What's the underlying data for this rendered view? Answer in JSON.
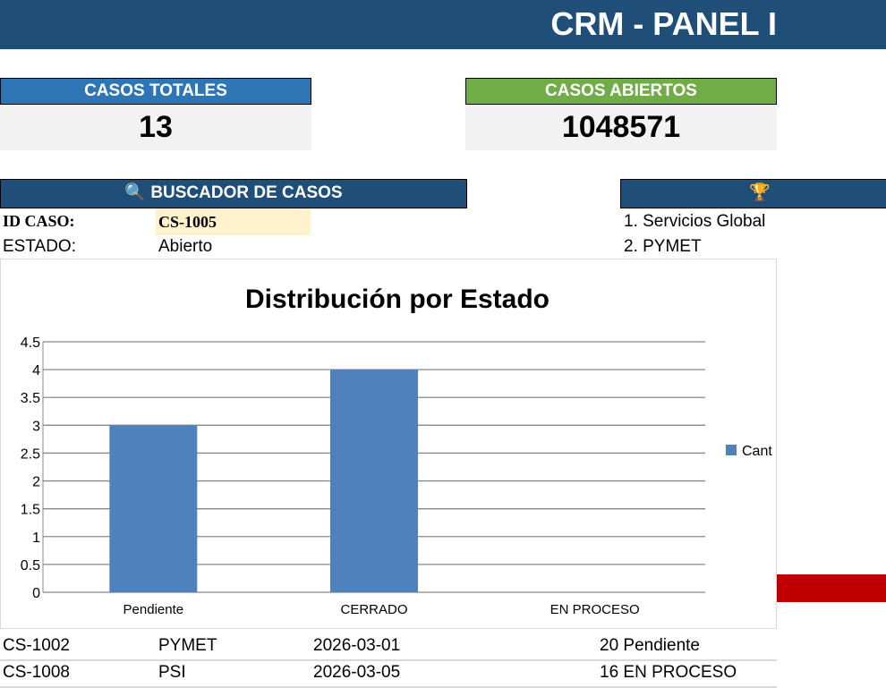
{
  "header": {
    "title": "CRM - PANEL I"
  },
  "kpis": [
    {
      "label": "CASOS TOTALES",
      "value": "13",
      "color": "#2e75b6"
    },
    {
      "label": "CASOS ABIERTOS",
      "value": "1048571",
      "color": "#70ad47"
    }
  ],
  "search": {
    "title": "BUSCADOR DE CASOS",
    "icon": "search-icon",
    "id_label": "ID CASO:",
    "id_value": "CS-1005",
    "status_label": "ESTADO:",
    "status_value": "Abierto"
  },
  "ranking": {
    "icon": "trophy-icon",
    "items": [
      "1. Servicios Global",
      "2. PYMET"
    ]
  },
  "table": {
    "rows": [
      [
        "CS-1002",
        "PYMET",
        "2026-03-01",
        "20 Pendiente"
      ],
      [
        "CS-1008",
        "PSI",
        "2026-03-05",
        "16 EN PROCESO"
      ]
    ]
  },
  "chart_data": {
    "type": "bar",
    "title": "Distribución por Estado",
    "categories": [
      "Pendiente",
      "CERRADO",
      "EN PROCESO"
    ],
    "series": [
      {
        "name": "Cant",
        "values": [
          3,
          4,
          0
        ],
        "color": "#4f81bd"
      }
    ],
    "ylim": [
      0,
      4.5
    ],
    "yticks": [
      "0",
      "0.5",
      "1",
      "1.5",
      "2",
      "2.5",
      "3",
      "3.5",
      "4",
      "4.5"
    ],
    "grid": true,
    "legend": "right"
  }
}
